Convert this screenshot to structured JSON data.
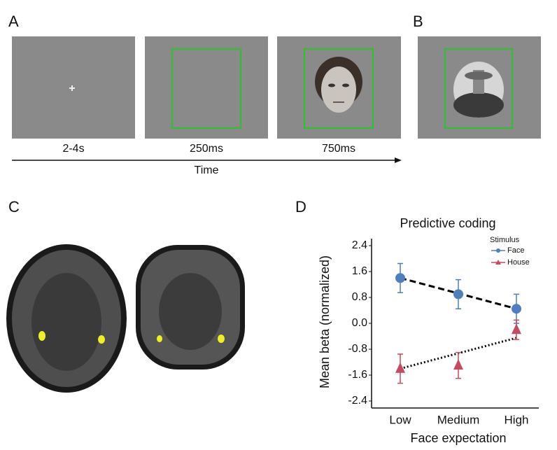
{
  "panels": {
    "A": {
      "label": "A",
      "timeline": [
        "2-4s",
        "250ms",
        "750ms"
      ],
      "axis_label": "Time"
    },
    "B": {
      "label": "B"
    },
    "C": {
      "label": "C"
    },
    "D": {
      "label": "D"
    }
  },
  "chart_data": {
    "type": "errorbar",
    "title": "Predictive coding",
    "y_label": "Mean beta (normalized)",
    "x_label": "Face expectation",
    "categories": [
      "Low",
      "Medium",
      "High"
    ],
    "legend_title": "Stimulus",
    "legend": "upper right",
    "series": [
      {
        "name": "Face",
        "color": "#4f7fbf",
        "marker": "circle",
        "values": [
          1.4,
          0.9,
          0.45
        ],
        "errors": [
          0.45,
          0.45,
          0.45
        ],
        "trend": [
          1.4,
          0.45
        ],
        "trend_style": "dashed"
      },
      {
        "name": "House",
        "color": "#c84a5e",
        "marker": "triangle",
        "values": [
          -1.4,
          -1.3,
          -0.2
        ],
        "errors": [
          0.45,
          0.4,
          0.3
        ],
        "trend": [
          -1.4,
          -0.45
        ],
        "trend_style": "dotted"
      }
    ],
    "ylim": [
      -2.4,
      2.4
    ],
    "yticks": [
      -2.4,
      -1.6,
      -0.8,
      {
        "value": 0,
        "label": "0.0"
      },
      0.8,
      1.6,
      2.4
    ]
  }
}
